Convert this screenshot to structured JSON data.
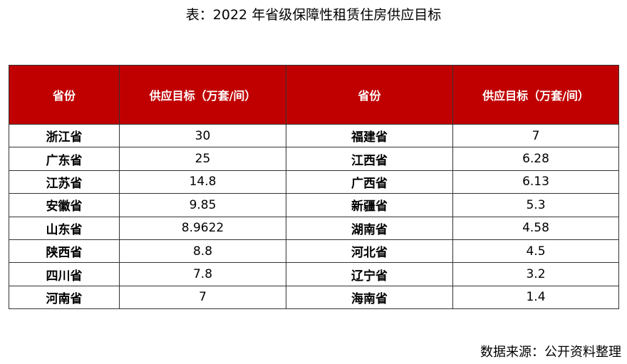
{
  "title": "表：2022 年省级保障性租赁住房供应目标",
  "table": {
    "header": [
      "省份",
      "供应目标（万套/间）",
      "省份",
      "供应目标（万套/间）"
    ],
    "rows": [
      [
        "浙江省",
        "30",
        "福建省",
        "7"
      ],
      [
        "广东省",
        "25",
        "江西省",
        "6.28"
      ],
      [
        "江苏省",
        "14.8",
        "广西省",
        "6.13"
      ],
      [
        "安徽省",
        "9.85",
        "新疆省",
        "5.3"
      ],
      [
        "山东省",
        "8.9622",
        "湖南省",
        "4.58"
      ],
      [
        "陕西省",
        "8.8",
        "河北省",
        "4.5"
      ],
      [
        "四川省",
        "7.8",
        "辽宁省",
        "3.2"
      ],
      [
        "河南省",
        "7",
        "海南省",
        "1.4"
      ]
    ]
  },
  "source": "数据来源：公开资料整理"
}
